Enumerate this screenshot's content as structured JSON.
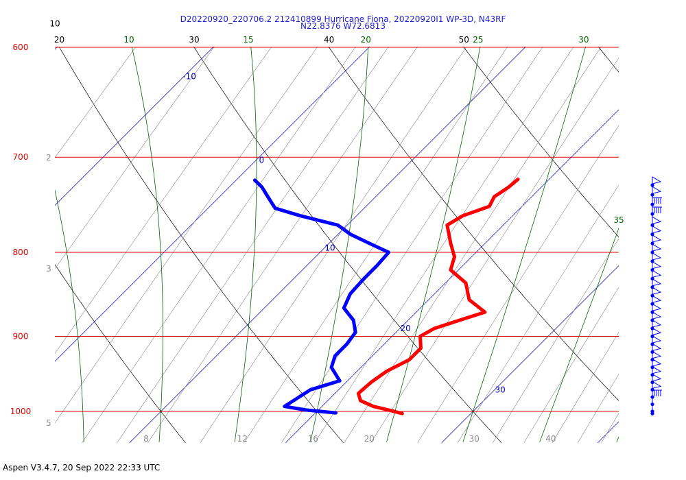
{
  "header": {
    "title_line1": "D20220920_220706.2 212410899 Hurricane Fiona, 20220920I1 WP-3D, N43RF",
    "title_line2": "N22.8376 W72.6813"
  },
  "footer": {
    "text": "Aspen V3.4.7, 20 Sep 2022  22:33 UTC"
  },
  "colors": {
    "isobar": "#e00000",
    "isotherm": "#0000c0",
    "mixing_ratio": "#8a8a8a",
    "dry_adiabat": "#000000",
    "moist_adiabat": "#006400",
    "temperature": "#ff0000",
    "dewpoint": "#0000ff",
    "wind_barbs": "#0000ff"
  },
  "chart_data": {
    "type": "line",
    "chart_kind": "skew-T log-P diagram",
    "ylim": [
      1040,
      600
    ],
    "y_log_scale": true,
    "isobars": [
      "600",
      "700",
      "800",
      "900",
      "1000"
    ],
    "isotherm_labels": [
      "-10",
      "0",
      "10",
      "20",
      "30"
    ],
    "mixing_ratio_labels_left": [
      "2",
      "3",
      "5"
    ],
    "mixing_ratio_labels_bottom": [
      "8",
      "12",
      "16",
      "20",
      "30",
      "40"
    ],
    "dry_adiabat_labels": [
      "30",
      "40",
      "50",
      "20",
      "10"
    ],
    "moist_adiabat_labels": [
      "10",
      "15",
      "20",
      "25",
      "30",
      "35"
    ],
    "series": [
      {
        "name": "",
        "role": "temperature",
        "points": [
          {
            "p": 1003,
            "t": 25.6
          },
          {
            "p": 998,
            "t": 24.5
          },
          {
            "p": 993,
            "t": 23.3
          },
          {
            "p": 985,
            "t": 22.1
          },
          {
            "p": 975,
            "t": 21.5
          },
          {
            "p": 960,
            "t": 21.6
          },
          {
            "p": 945,
            "t": 21.9
          },
          {
            "p": 930,
            "t": 22.6
          },
          {
            "p": 915,
            "t": 22.6
          },
          {
            "p": 900,
            "t": 21.8
          },
          {
            "p": 890,
            "t": 22.2
          },
          {
            "p": 879,
            "t": 23.4
          },
          {
            "p": 870,
            "t": 24.4
          },
          {
            "p": 855,
            "t": 22.6
          },
          {
            "p": 835,
            "t": 21.3
          },
          {
            "p": 820,
            "t": 19.5
          },
          {
            "p": 805,
            "t": 18.9
          },
          {
            "p": 790,
            "t": 17.8
          },
          {
            "p": 770,
            "t": 16.4
          },
          {
            "p": 760,
            "t": 16.8
          },
          {
            "p": 750,
            "t": 17.9
          },
          {
            "p": 740,
            "t": 17.6
          },
          {
            "p": 730,
            "t": 17.9
          },
          {
            "p": 722,
            "t": 18.0
          }
        ]
      },
      {
        "name": "",
        "role": "dewpoint",
        "points": [
          {
            "p": 1002,
            "t": 21.3
          },
          {
            "p": 998,
            "t": 19.2
          },
          {
            "p": 993,
            "t": 17.6
          },
          {
            "p": 985,
            "t": 17.8
          },
          {
            "p": 970,
            "t": 18.2
          },
          {
            "p": 958,
            "t": 19.5
          },
          {
            "p": 940,
            "t": 18.1
          },
          {
            "p": 925,
            "t": 17.6
          },
          {
            "p": 910,
            "t": 17.6
          },
          {
            "p": 895,
            "t": 17.4
          },
          {
            "p": 880,
            "t": 16.5
          },
          {
            "p": 865,
            "t": 15.1
          },
          {
            "p": 848,
            "t": 14.6
          },
          {
            "p": 830,
            "t": 14.5
          },
          {
            "p": 815,
            "t": 14.5
          },
          {
            "p": 800,
            "t": 14.4
          },
          {
            "p": 790,
            "t": 12.6
          },
          {
            "p": 780,
            "t": 10.8
          },
          {
            "p": 770,
            "t": 9.4
          },
          {
            "p": 760,
            "t": 6.4
          },
          {
            "p": 752,
            "t": 4.3
          },
          {
            "p": 740,
            "t": 3.1
          },
          {
            "p": 730,
            "t": 2.1
          },
          {
            "p": 723,
            "t": 1.2
          }
        ]
      }
    ],
    "wind_barbs": [
      {
        "p": 1003,
        "barb": "calm"
      },
      {
        "p": 1000,
        "barb": "calm"
      },
      {
        "p": 990,
        "barb": "calm"
      },
      {
        "p": 980,
        "barb": "flags4"
      },
      {
        "p": 970,
        "barb": "pennant"
      },
      {
        "p": 960,
        "barb": "pennant"
      },
      {
        "p": 950,
        "barb": "pennant"
      },
      {
        "p": 940,
        "barb": "pennant"
      },
      {
        "p": 930,
        "barb": "pennant"
      },
      {
        "p": 920,
        "barb": "pennant"
      },
      {
        "p": 910,
        "barb": "pennant"
      },
      {
        "p": 900,
        "barb": "pennant"
      },
      {
        "p": 890,
        "barb": "pennant"
      },
      {
        "p": 880,
        "barb": "pennant"
      },
      {
        "p": 870,
        "barb": "pennant"
      },
      {
        "p": 860,
        "barb": "pennant"
      },
      {
        "p": 850,
        "barb": "pennant"
      },
      {
        "p": 840,
        "barb": "pennant"
      },
      {
        "p": 830,
        "barb": "pennant"
      },
      {
        "p": 820,
        "barb": "pennant"
      },
      {
        "p": 810,
        "barb": "pennant"
      },
      {
        "p": 800,
        "barb": "pennant"
      },
      {
        "p": 790,
        "barb": "pennant"
      },
      {
        "p": 780,
        "barb": "pennant"
      },
      {
        "p": 770,
        "barb": "pennant"
      },
      {
        "p": 758,
        "barb": "flags4"
      },
      {
        "p": 748,
        "barb": "flags4"
      },
      {
        "p": 738,
        "barb": "pennant"
      },
      {
        "p": 728,
        "barb": "pennant"
      }
    ]
  }
}
